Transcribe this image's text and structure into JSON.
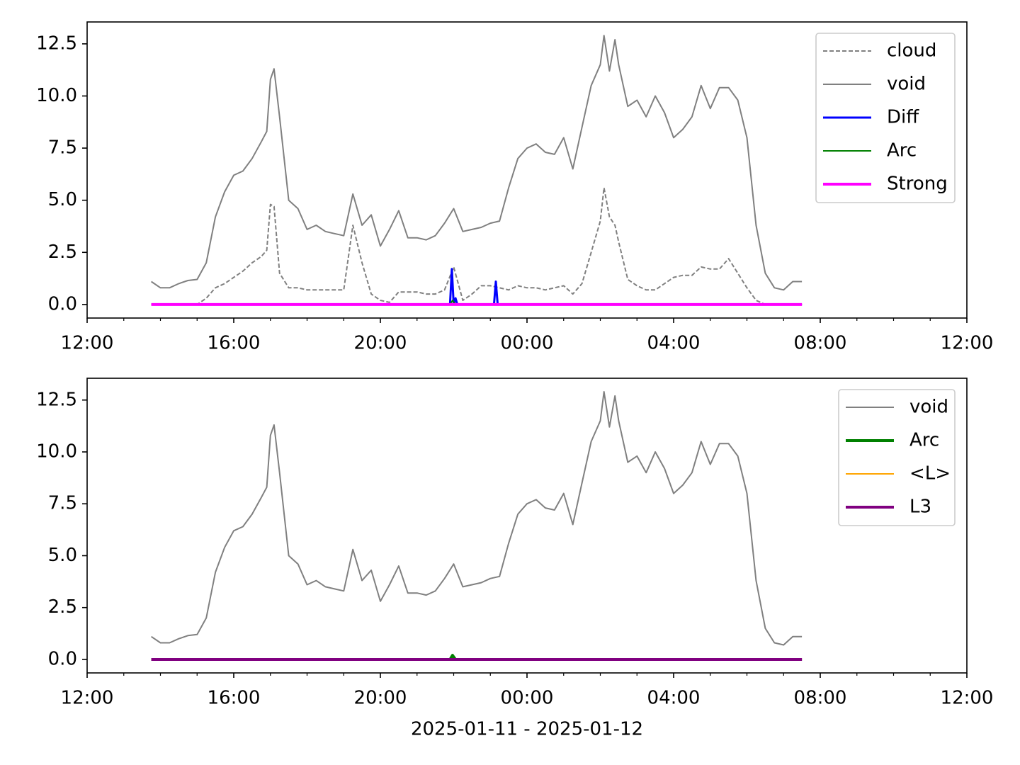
{
  "chart_data": [
    {
      "type": "line",
      "legend": "upper right",
      "xlim": [
        12,
        36
      ],
      "xticks": [
        {
          "value": 12,
          "label": "12:00"
        },
        {
          "value": 16,
          "label": "16:00"
        },
        {
          "value": 20,
          "label": "20:00"
        },
        {
          "value": 24,
          "label": "00:00"
        },
        {
          "value": 28,
          "label": "04:00"
        },
        {
          "value": 32,
          "label": "08:00"
        },
        {
          "value": 36,
          "label": "12:00"
        }
      ],
      "xminorticks": [
        13,
        14,
        15,
        17,
        18,
        19,
        21,
        22,
        23,
        25,
        26,
        27,
        29,
        30,
        31,
        33,
        34,
        35
      ],
      "ylim": [
        -0.65,
        13.55
      ],
      "yticks": [
        {
          "value": 0,
          "label": "0.0"
        },
        2.5,
        {
          "value": 5,
          "label": "5.0"
        },
        7.5,
        {
          "value": 10,
          "label": "10.0"
        },
        12.5
      ],
      "series": [
        {
          "name": "cloud",
          "color": "#808080",
          "linestyle": "dashed",
          "linewidth": 2,
          "x": [
            13.75,
            14,
            14.25,
            14.5,
            14.75,
            15,
            15.25,
            15.5,
            15.75,
            16,
            16.25,
            16.5,
            16.75,
            16.9,
            17,
            17.1,
            17.25,
            17.5,
            17.75,
            18,
            18.25,
            18.5,
            18.75,
            19,
            19.25,
            19.5,
            19.75,
            20,
            20.25,
            20.5,
            20.75,
            21,
            21.25,
            21.5,
            21.75,
            22,
            22.25,
            22.5,
            22.75,
            23,
            23.25,
            23.5,
            23.75,
            24,
            24.25,
            24.5,
            24.75,
            25,
            25.25,
            25.5,
            25.75,
            26,
            26.1,
            26.25,
            26.4,
            26.5,
            26.75,
            27,
            27.25,
            27.5,
            27.75,
            28,
            28.25,
            28.5,
            28.75,
            29,
            29.25,
            29.5,
            29.75,
            30,
            30.25,
            30.5,
            30.75,
            31,
            31.25,
            31.5
          ],
          "values": [
            0,
            0,
            0,
            0,
            0,
            0,
            0.3,
            0.8,
            1.0,
            1.3,
            1.6,
            2.0,
            2.3,
            2.6,
            4.8,
            4.7,
            1.5,
            0.8,
            0.8,
            0.7,
            0.7,
            0.7,
            0.7,
            0.7,
            3.8,
            2.0,
            0.5,
            0.2,
            0.1,
            0.6,
            0.6,
            0.6,
            0.5,
            0.5,
            0.7,
            1.8,
            0.2,
            0.5,
            0.9,
            0.9,
            0.8,
            0.7,
            0.9,
            0.8,
            0.8,
            0.7,
            0.8,
            0.9,
            0.5,
            1.0,
            2.5,
            4.0,
            5.6,
            4.2,
            3.8,
            3.0,
            1.2,
            0.9,
            0.7,
            0.7,
            1.0,
            1.3,
            1.4,
            1.4,
            1.8,
            1.7,
            1.7,
            2.2,
            1.5,
            0.8,
            0.2,
            0,
            0,
            0,
            0,
            0
          ]
        },
        {
          "name": "void",
          "color": "#808080",
          "linestyle": "solid",
          "linewidth": 2,
          "x": [
            13.75,
            14,
            14.25,
            14.5,
            14.75,
            15,
            15.25,
            15.5,
            15.75,
            16,
            16.25,
            16.5,
            16.75,
            16.9,
            17,
            17.1,
            17.25,
            17.5,
            17.75,
            18,
            18.25,
            18.5,
            18.75,
            19,
            19.25,
            19.5,
            19.75,
            20,
            20.25,
            20.5,
            20.75,
            21,
            21.25,
            21.5,
            21.75,
            22,
            22.25,
            22.5,
            22.75,
            23,
            23.25,
            23.5,
            23.75,
            24,
            24.25,
            24.5,
            24.75,
            25,
            25.25,
            25.5,
            25.75,
            26,
            26.1,
            26.25,
            26.4,
            26.5,
            26.75,
            27,
            27.25,
            27.5,
            27.75,
            28,
            28.25,
            28.5,
            28.75,
            29,
            29.25,
            29.5,
            29.75,
            30,
            30.25,
            30.5,
            30.75,
            31,
            31.25,
            31.5
          ],
          "values": [
            1.1,
            0.8,
            0.8,
            1.0,
            1.15,
            1.2,
            2.0,
            4.2,
            5.4,
            6.2,
            6.4,
            7.0,
            7.8,
            8.3,
            10.8,
            11.3,
            9.0,
            5.0,
            4.6,
            3.6,
            3.8,
            3.5,
            3.4,
            3.3,
            5.3,
            3.8,
            4.3,
            2.8,
            3.6,
            4.5,
            3.2,
            3.2,
            3.1,
            3.3,
            3.9,
            4.6,
            3.5,
            3.6,
            3.7,
            3.9,
            4.0,
            5.6,
            7.0,
            7.5,
            7.7,
            7.3,
            7.2,
            8.0,
            6.5,
            8.5,
            10.5,
            11.5,
            12.9,
            11.2,
            12.7,
            11.5,
            9.5,
            9.8,
            9.0,
            10.0,
            9.2,
            8.0,
            8.4,
            9.0,
            10.5,
            9.4,
            10.4,
            10.4,
            9.8,
            8.0,
            3.8,
            1.5,
            0.8,
            0.7,
            1.1,
            1.1
          ]
        },
        {
          "name": "Diff",
          "color": "#0000ff",
          "linestyle": "solid",
          "linewidth": 3,
          "x": [
            13.75,
            21.9,
            21.95,
            22.0,
            22.05,
            22.1,
            23.1,
            23.15,
            23.2,
            31.5
          ],
          "values": [
            0,
            0,
            1.7,
            0,
            0.3,
            0,
            0,
            1.1,
            0,
            0
          ]
        },
        {
          "name": "Arc",
          "color": "#008000",
          "linestyle": "solid",
          "linewidth": 2,
          "x": [
            13.75,
            21.9,
            21.97,
            22.05,
            31.5
          ],
          "values": [
            0,
            0,
            0.2,
            0,
            0
          ]
        },
        {
          "name": "Strong",
          "color": "#ff00ff",
          "linestyle": "solid",
          "linewidth": 4,
          "x": [
            13.75,
            31.5
          ],
          "values": [
            0,
            0
          ]
        }
      ]
    },
    {
      "type": "line",
      "legend": "upper right",
      "xlabel": "2025-01-11 - 2025-01-12",
      "xlim": [
        12,
        36
      ],
      "xticks": [
        {
          "value": 12,
          "label": "12:00"
        },
        {
          "value": 16,
          "label": "16:00"
        },
        {
          "value": 20,
          "label": "20:00"
        },
        {
          "value": 24,
          "label": "00:00"
        },
        {
          "value": 28,
          "label": "04:00"
        },
        {
          "value": 32,
          "label": "08:00"
        },
        {
          "value": 36,
          "label": "12:00"
        }
      ],
      "xminorticks": [
        13,
        14,
        15,
        17,
        18,
        19,
        21,
        22,
        23,
        25,
        26,
        27,
        29,
        30,
        31,
        33,
        34,
        35
      ],
      "ylim": [
        -0.65,
        13.55
      ],
      "yticks": [
        {
          "value": 0,
          "label": "0.0"
        },
        2.5,
        {
          "value": 5,
          "label": "5.0"
        },
        7.5,
        {
          "value": 10,
          "label": "10.0"
        },
        12.5
      ],
      "series": [
        {
          "name": "void",
          "color": "#808080",
          "linestyle": "solid",
          "linewidth": 2,
          "x": [
            13.75,
            14,
            14.25,
            14.5,
            14.75,
            15,
            15.25,
            15.5,
            15.75,
            16,
            16.25,
            16.5,
            16.75,
            16.9,
            17,
            17.1,
            17.25,
            17.5,
            17.75,
            18,
            18.25,
            18.5,
            18.75,
            19,
            19.25,
            19.5,
            19.75,
            20,
            20.25,
            20.5,
            20.75,
            21,
            21.25,
            21.5,
            21.75,
            22,
            22.25,
            22.5,
            22.75,
            23,
            23.25,
            23.5,
            23.75,
            24,
            24.25,
            24.5,
            24.75,
            25,
            25.25,
            25.5,
            25.75,
            26,
            26.1,
            26.25,
            26.4,
            26.5,
            26.75,
            27,
            27.25,
            27.5,
            27.75,
            28,
            28.25,
            28.5,
            28.75,
            29,
            29.25,
            29.5,
            29.75,
            30,
            30.25,
            30.5,
            30.75,
            31,
            31.25,
            31.5
          ],
          "values": [
            1.1,
            0.8,
            0.8,
            1.0,
            1.15,
            1.2,
            2.0,
            4.2,
            5.4,
            6.2,
            6.4,
            7.0,
            7.8,
            8.3,
            10.8,
            11.3,
            9.0,
            5.0,
            4.6,
            3.6,
            3.8,
            3.5,
            3.4,
            3.3,
            5.3,
            3.8,
            4.3,
            2.8,
            3.6,
            4.5,
            3.2,
            3.2,
            3.1,
            3.3,
            3.9,
            4.6,
            3.5,
            3.6,
            3.7,
            3.9,
            4.0,
            5.6,
            7.0,
            7.5,
            7.7,
            7.3,
            7.2,
            8.0,
            6.5,
            8.5,
            10.5,
            11.5,
            12.9,
            11.2,
            12.7,
            11.5,
            9.5,
            9.8,
            9.0,
            10.0,
            9.2,
            8.0,
            8.4,
            9.0,
            10.5,
            9.4,
            10.4,
            10.4,
            9.8,
            8.0,
            3.8,
            1.5,
            0.8,
            0.7,
            1.1,
            1.1
          ]
        },
        {
          "name": "Arc",
          "color": "#008000",
          "linestyle": "solid",
          "linewidth": 4,
          "x": [
            13.75,
            21.9,
            21.97,
            22.05,
            31.5
          ],
          "values": [
            0,
            0,
            0.2,
            0,
            0
          ]
        },
        {
          "name": "<L>",
          "color": "#ffa500",
          "linestyle": "solid",
          "linewidth": 2,
          "x": [
            13.75,
            31.5
          ],
          "values": [
            0,
            0
          ]
        },
        {
          "name": "L3",
          "color": "#800080",
          "linestyle": "solid",
          "linewidth": 4,
          "x": [
            13.75,
            31.5
          ],
          "values": [
            0,
            0
          ]
        }
      ]
    }
  ]
}
